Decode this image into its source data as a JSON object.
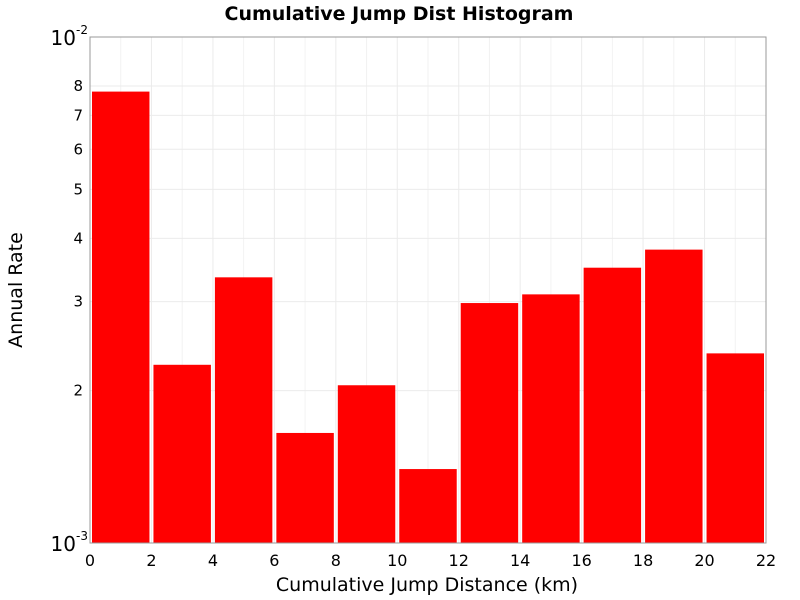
{
  "chart_data": {
    "type": "bar",
    "title": "Cumulative Jump Dist Histogram",
    "xlabel": "Cumulative Jump Distance (km)",
    "ylabel": "Annual Rate",
    "xlim": [
      0,
      22
    ],
    "ylim": [
      0.001,
      0.01
    ],
    "yscale": "log",
    "grid": true,
    "bar_color": "#ff0000",
    "x_ticks": [
      "0",
      "2",
      "4",
      "6",
      "8",
      "10",
      "12",
      "14",
      "16",
      "18",
      "20",
      "22"
    ],
    "y_ticks_minor": [
      {
        "value": 0.002,
        "label": "2"
      },
      {
        "value": 0.003,
        "label": "3"
      },
      {
        "value": 0.004,
        "label": "4"
      },
      {
        "value": 0.005,
        "label": "5"
      },
      {
        "value": 0.006,
        "label": "6"
      },
      {
        "value": 0.007,
        "label": "7"
      },
      {
        "value": 0.008,
        "label": "8"
      }
    ],
    "y_ticks_major": [
      {
        "value": 0.001,
        "base": "10",
        "exp": "-3"
      },
      {
        "value": 0.01,
        "base": "10",
        "exp": "-2"
      }
    ],
    "bars": [
      {
        "x0": 0,
        "x1": 2,
        "value": 0.0078
      },
      {
        "x0": 2,
        "x1": 4,
        "value": 0.00225
      },
      {
        "x0": 4,
        "x1": 6,
        "value": 0.00335
      },
      {
        "x0": 6,
        "x1": 8,
        "value": 0.00165
      },
      {
        "x0": 8,
        "x1": 10,
        "value": 0.00205
      },
      {
        "x0": 10,
        "x1": 12,
        "value": 0.0014
      },
      {
        "x0": 12,
        "x1": 14,
        "value": 0.00298
      },
      {
        "x0": 14,
        "x1": 16,
        "value": 0.0031
      },
      {
        "x0": 16,
        "x1": 18,
        "value": 0.0035
      },
      {
        "x0": 18,
        "x1": 20,
        "value": 0.0038
      },
      {
        "x0": 20,
        "x1": 22,
        "value": 0.00237
      }
    ]
  }
}
